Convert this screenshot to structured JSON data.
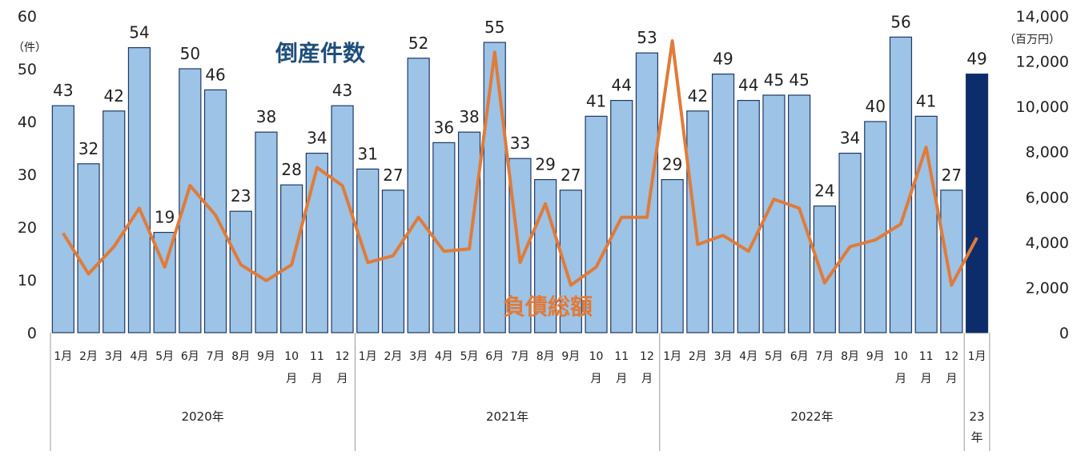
{
  "chart_data": {
    "type": "bar",
    "title": "",
    "y_left": {
      "unit": "（件）",
      "ylim": [
        0,
        60
      ],
      "ticks": [
        0,
        10,
        20,
        30,
        40,
        50,
        60
      ]
    },
    "y_right": {
      "unit": "（百万円）",
      "ylim": [
        0,
        14000
      ],
      "ticks": [
        "0",
        "2,000",
        "4,000",
        "6,000",
        "8,000",
        "10,000",
        "12,000",
        "14,000"
      ]
    },
    "categories": [
      [
        "1月"
      ],
      [
        "2月"
      ],
      [
        "3月"
      ],
      [
        "4月"
      ],
      [
        "5月"
      ],
      [
        "6月"
      ],
      [
        "7月"
      ],
      [
        "8月"
      ],
      [
        "9月"
      ],
      [
        "10",
        "月"
      ],
      [
        "11",
        "月"
      ],
      [
        "12",
        "月"
      ],
      [
        "1月"
      ],
      [
        "2月"
      ],
      [
        "3月"
      ],
      [
        "4月"
      ],
      [
        "5月"
      ],
      [
        "6月"
      ],
      [
        "7月"
      ],
      [
        "8月"
      ],
      [
        "9月"
      ],
      [
        "10",
        "月"
      ],
      [
        "11",
        "月"
      ],
      [
        "12",
        "月"
      ],
      [
        "1月"
      ],
      [
        "2月"
      ],
      [
        "3月"
      ],
      [
        "4月"
      ],
      [
        "5月"
      ],
      [
        "6月"
      ],
      [
        "7月"
      ],
      [
        "8月"
      ],
      [
        "9月"
      ],
      [
        "10",
        "月"
      ],
      [
        "11",
        "月"
      ],
      [
        "12",
        "月"
      ],
      [
        "1月"
      ]
    ],
    "years": [
      {
        "label": [
          "2020年"
        ],
        "start": 0,
        "end": 11
      },
      {
        "label": [
          "2021年"
        ],
        "start": 12,
        "end": 23
      },
      {
        "label": [
          "2022年"
        ],
        "start": 24,
        "end": 35
      },
      {
        "label": [
          "23",
          "年"
        ],
        "start": 36,
        "end": 36
      }
    ],
    "series": [
      {
        "name": "倒産件数",
        "type": "bar",
        "axis": "left",
        "values": [
          43,
          32,
          42,
          54,
          19,
          50,
          46,
          23,
          38,
          28,
          34,
          43,
          31,
          27,
          52,
          36,
          38,
          55,
          33,
          29,
          27,
          41,
          44,
          53,
          29,
          42,
          49,
          44,
          45,
          45,
          24,
          34,
          40,
          56,
          41,
          27,
          49
        ],
        "highlight_index": 36
      },
      {
        "name": "負債総額",
        "type": "line",
        "axis": "right",
        "values": [
          4400,
          2600,
          3800,
          5500,
          2900,
          6500,
          5200,
          3000,
          2300,
          3000,
          7300,
          6500,
          3100,
          3400,
          5100,
          3600,
          3700,
          12400,
          3100,
          5700,
          2100,
          2900,
          5100,
          5100,
          12900,
          3900,
          4300,
          3600,
          5900,
          5500,
          2200,
          3800,
          4100,
          4800,
          8200,
          2100,
          4200
        ]
      }
    ],
    "colors": {
      "bar": "#9dc3e6",
      "bar_highlight": "#0d2c6b",
      "bar_stroke": "#1f3864",
      "line": "#e07b39",
      "bar_series_label": "#1f4e79",
      "line_series_label": "#e07b39",
      "divider": "#999999"
    },
    "grid": false
  }
}
